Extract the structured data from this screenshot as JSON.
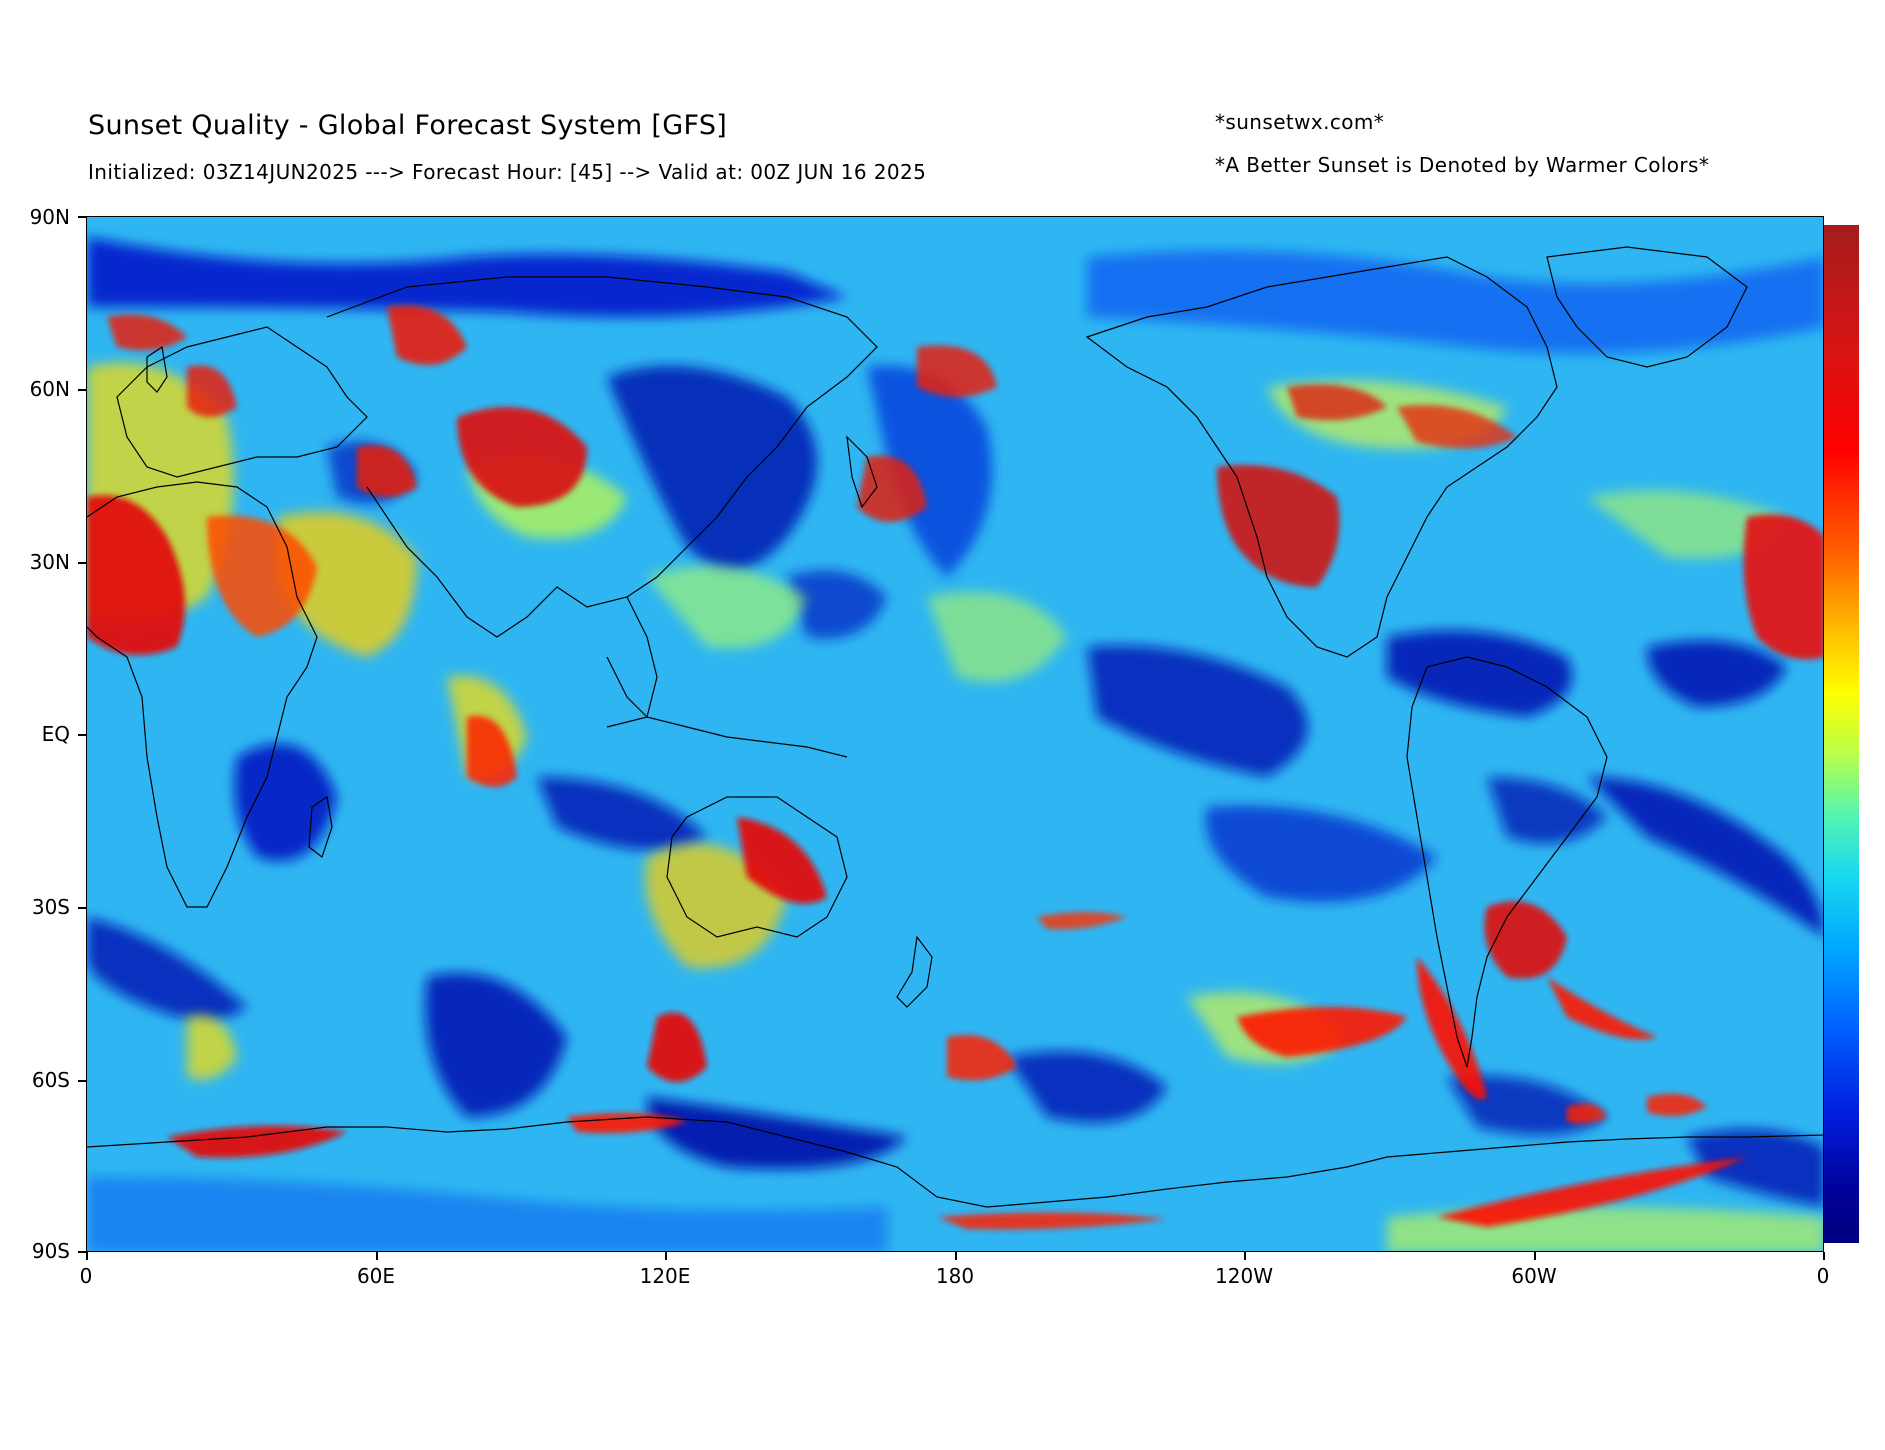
{
  "header": {
    "title": "Sunset Quality - Global Forecast System [GFS]",
    "subtitle": "Initialized: 03Z14JUN2025 ---> Forecast Hour: [45] --> Valid at: 00Z JUN 16 2025",
    "credit": "*sunsetwx.com*",
    "note": "*A Better Sunset is Denoted by Warmer Colors*"
  },
  "axes": {
    "lat_labels": [
      "90N",
      "60N",
      "30N",
      "EQ",
      "30S",
      "60S",
      "90S"
    ],
    "lon_labels": [
      "0",
      "60E",
      "120E",
      "180",
      "120W",
      "60W",
      "0"
    ]
  },
  "map": {
    "projection": "equirectangular",
    "variable": "sunset quality",
    "colormap": "jet",
    "high_quality_regions": [
      "western United States",
      "southern South America",
      "north Africa",
      "central Asia",
      "northern Australia",
      "western Sahara"
    ]
  },
  "colorbar": {
    "low_color": "#000080",
    "high_color": "#a51c1c",
    "orientation": "vertical"
  }
}
